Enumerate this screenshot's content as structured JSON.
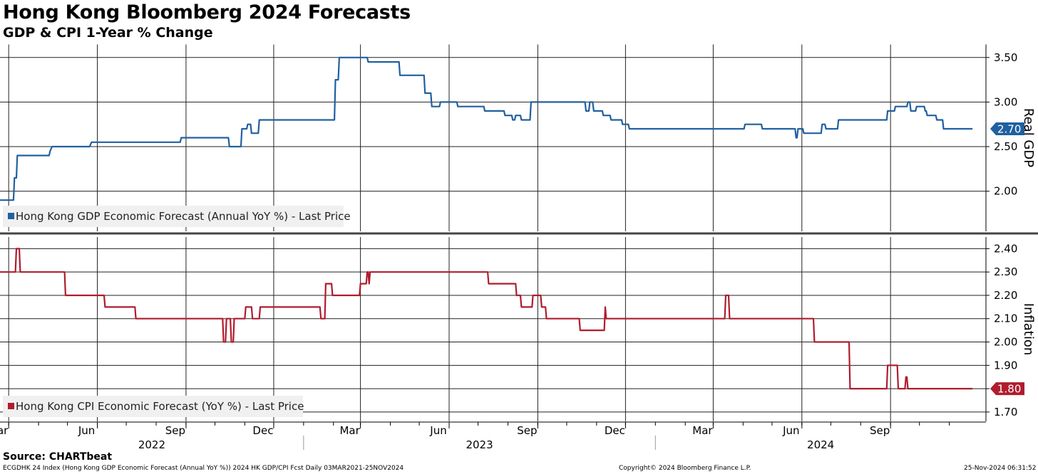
{
  "title": "Hong Kong Bloomberg 2024 Forecasts",
  "subtitle": "GDP & CPI 1-Year % Change",
  "source": "Source: CHARTbeat",
  "footer": {
    "left": "ECGDHK 24 Index (Hong Kong GDP Economic Forecast (Annual YoY %)) 2024 HK GDP/CPI Fcst  Daily 03MAR2021-25NOV2024",
    "center": "Copyright© 2024 Bloomberg Finance L.P.",
    "right": "25-Nov-2024 06:31:52"
  },
  "colors": {
    "gdp": "#2060a0",
    "cpi": "#b01c2e"
  },
  "chart_data": [
    {
      "type": "line",
      "ylabel": "Real GDP",
      "ylim": [
        1.55,
        3.65
      ],
      "yticks": [
        "2.00",
        "2.50",
        "3.00",
        "3.50"
      ],
      "grid": true,
      "legend": "bottom-left",
      "last_value": "2.70",
      "series": [
        {
          "name": "Hong Kong GDP Economic Forecast (Annual YoY %) - Last Price",
          "color": "#2060a0",
          "x": [
            "2022-02-20",
            "2022-03-06",
            "2022-03-07",
            "2022-03-09",
            "2022-03-10",
            "2022-04-12",
            "2022-04-13",
            "2022-04-15",
            "2022-05-15",
            "2022-05-22",
            "2022-05-24",
            "2022-05-26",
            "2022-06-22",
            "2022-06-23",
            "2022-07-21",
            "2022-07-22",
            "2022-07-23",
            "2022-08-26",
            "2022-08-27",
            "2022-10-01",
            "2022-10-02",
            "2022-10-15",
            "2022-10-16",
            "2022-10-23",
            "2022-10-24",
            "2022-10-27",
            "2022-10-28",
            "2022-10-29",
            "2022-11-03",
            "2022-11-04",
            "2022-11-07",
            "2022-11-08",
            "2022-11-15",
            "2022-11-16",
            "2023-01-27",
            "2023-01-28",
            "2023-02-02",
            "2023-02-03",
            "2023-02-06",
            "2023-02-07",
            "2023-03-08",
            "2023-03-09",
            "2023-04-10",
            "2023-04-11",
            "2023-05-06",
            "2023-05-07",
            "2023-05-13",
            "2023-05-14",
            "2023-05-22",
            "2023-05-23",
            "2023-06-09",
            "2023-06-10",
            "2023-07-07",
            "2023-07-08",
            "2023-07-28",
            "2023-07-29",
            "2023-08-05",
            "2023-08-06",
            "2023-08-08",
            "2023-08-09",
            "2023-08-14",
            "2023-08-15",
            "2023-08-24",
            "2023-08-25",
            "2023-10-20",
            "2023-10-21",
            "2023-10-24",
            "2023-10-25",
            "2023-10-28",
            "2023-10-29",
            "2023-11-07",
            "2023-11-08",
            "2023-11-15",
            "2023-11-16",
            "2023-11-27",
            "2023-11-28",
            "2023-12-04",
            "2023-12-05",
            "2024-03-24",
            "2024-03-25",
            "2024-04-02",
            "2024-04-03",
            "2024-04-20",
            "2024-04-21",
            "2024-05-25",
            "2024-05-26",
            "2024-05-27",
            "2024-05-28",
            "2024-06-02",
            "2024-06-03",
            "2024-06-12",
            "2024-06-13",
            "2024-06-21",
            "2024-06-22",
            "2024-06-25",
            "2024-06-26",
            "2024-07-08",
            "2024-07-09",
            "2024-08-28",
            "2024-08-29",
            "2024-09-05",
            "2024-09-06",
            "2024-09-18",
            "2024-09-19",
            "2024-09-21",
            "2024-09-22",
            "2024-09-23",
            "2024-09-24",
            "2024-09-27",
            "2024-09-28",
            "2024-10-06",
            "2024-10-07",
            "2024-10-08",
            "2024-10-09",
            "2024-10-18",
            "2024-10-19",
            "2024-10-25",
            "2024-10-26",
            "2024-11-25"
          ],
          "y": [
            1.9,
            1.9,
            2.15,
            2.15,
            2.4,
            2.4,
            2.45,
            2.5,
            2.5,
            2.5,
            2.5,
            2.55,
            2.55,
            2.55,
            2.55,
            2.55,
            2.55,
            2.55,
            2.6,
            2.6,
            2.6,
            2.6,
            2.5,
            2.5,
            2.5,
            2.5,
            2.5,
            2.7,
            2.7,
            2.75,
            2.75,
            2.65,
            2.65,
            2.8,
            2.8,
            2.8,
            2.8,
            3.25,
            3.25,
            3.5,
            3.5,
            3.45,
            3.45,
            3.3,
            3.3,
            3.1,
            3.1,
            2.95,
            2.95,
            3.0,
            3.0,
            2.95,
            2.95,
            2.9,
            2.9,
            2.85,
            2.85,
            2.8,
            2.8,
            2.85,
            2.85,
            2.8,
            2.8,
            3.0,
            3.0,
            2.9,
            2.9,
            3.0,
            3.0,
            2.9,
            2.9,
            2.85,
            2.85,
            2.8,
            2.8,
            2.75,
            2.75,
            2.7,
            2.7,
            2.7,
            2.7,
            2.75,
            2.75,
            2.7,
            2.7,
            2.6,
            2.6,
            2.7,
            2.7,
            2.65,
            2.65,
            2.65,
            2.65,
            2.75,
            2.75,
            2.7,
            2.7,
            2.8,
            2.8,
            2.9,
            2.9,
            2.95,
            2.95,
            3.0,
            3.0,
            2.9,
            2.9,
            2.9,
            2.9,
            2.95,
            2.95,
            2.9,
            2.9,
            2.85,
            2.85,
            2.8,
            2.8,
            2.7,
            2.7
          ]
        }
      ]
    },
    {
      "type": "line",
      "ylabel": "Inflation",
      "ylim": [
        1.66,
        2.45
      ],
      "yticks": [
        "1.70",
        "1.80",
        "1.90",
        "2.00",
        "2.10",
        "2.20",
        "2.30",
        "2.40"
      ],
      "grid": true,
      "legend": "bottom-left",
      "last_value": "1.80",
      "series": [
        {
          "name": "Hong Kong CPI Economic Forecast (YoY %) - Last Price",
          "color": "#b01c2e",
          "x": [
            "2022-02-20",
            "2022-03-08",
            "2022-03-09",
            "2022-03-12",
            "2022-03-13",
            "2022-04-28",
            "2022-04-29",
            "2022-06-08",
            "2022-06-09",
            "2022-07-10",
            "2022-07-11",
            "2022-10-09",
            "2022-10-10",
            "2022-10-12",
            "2022-10-13",
            "2022-10-17",
            "2022-10-18",
            "2022-10-20",
            "2022-10-21",
            "2022-11-01",
            "2022-11-02",
            "2022-11-08",
            "2022-11-09",
            "2022-11-16",
            "2022-11-17",
            "2022-11-18",
            "2022-11-19",
            "2023-01-18",
            "2023-01-19",
            "2023-01-23",
            "2023-01-24",
            "2023-01-30",
            "2023-01-31",
            "2023-02-28",
            "2023-03-01",
            "2023-03-07",
            "2023-03-08",
            "2023-03-09",
            "2023-03-10",
            "2023-03-11",
            "2023-07-11",
            "2023-07-12",
            "2023-08-09",
            "2023-08-10",
            "2023-08-14",
            "2023-08-15",
            "2023-08-26",
            "2023-08-27",
            "2023-09-04",
            "2023-09-05",
            "2023-09-09",
            "2023-09-10",
            "2023-10-14",
            "2023-10-15",
            "2023-11-09",
            "2023-11-10",
            "2023-11-11",
            "2024-03-13",
            "2024-03-14",
            "2024-03-17",
            "2024-03-18",
            "2024-06-13",
            "2024-06-14",
            "2024-07-20",
            "2024-07-21",
            "2024-08-28",
            "2024-08-29",
            "2024-09-08",
            "2024-09-09",
            "2024-09-16",
            "2024-09-17",
            "2024-09-18",
            "2024-09-19",
            "2024-11-25"
          ],
          "y": [
            2.3,
            2.3,
            2.4,
            2.4,
            2.3,
            2.3,
            2.2,
            2.2,
            2.15,
            2.15,
            2.1,
            2.1,
            2.0,
            2.0,
            2.1,
            2.1,
            2.0,
            2.0,
            2.1,
            2.1,
            2.15,
            2.15,
            2.1,
            2.1,
            2.15,
            2.15,
            2.15,
            2.15,
            2.1,
            2.1,
            2.25,
            2.25,
            2.2,
            2.2,
            2.25,
            2.25,
            2.3,
            2.3,
            2.25,
            2.3,
            2.3,
            2.25,
            2.25,
            2.2,
            2.2,
            2.15,
            2.15,
            2.2,
            2.2,
            2.15,
            2.15,
            2.1,
            2.1,
            2.05,
            2.05,
            2.15,
            2.1,
            2.1,
            2.2,
            2.2,
            2.1,
            2.1,
            2.0,
            2.0,
            1.8,
            1.8,
            1.9,
            1.9,
            1.8,
            1.8,
            1.85,
            1.85,
            1.8,
            1.8
          ]
        }
      ]
    }
  ],
  "x_axis": {
    "months": [
      {
        "label": "Mar",
        "date": "2022-03-01"
      },
      {
        "label": "Jun",
        "date": "2022-06-01"
      },
      {
        "label": "Sep",
        "date": "2022-09-01"
      },
      {
        "label": "Dec",
        "date": "2022-12-01"
      },
      {
        "label": "Mar",
        "date": "2023-03-01"
      },
      {
        "label": "Jun",
        "date": "2023-06-01"
      },
      {
        "label": "Sep",
        "date": "2023-09-01"
      },
      {
        "label": "Dec",
        "date": "2023-12-01"
      },
      {
        "label": "Mar",
        "date": "2024-03-01"
      },
      {
        "label": "Jun",
        "date": "2024-06-01"
      },
      {
        "label": "Sep",
        "date": "2024-09-01"
      }
    ],
    "years": [
      {
        "label": "2022",
        "start": "2022-01-01",
        "end": "2023-01-01"
      },
      {
        "label": "2023",
        "start": "2023-01-01",
        "end": "2024-01-01"
      },
      {
        "label": "2024",
        "start": "2024-01-01",
        "end": "2025-01-01"
      }
    ]
  }
}
